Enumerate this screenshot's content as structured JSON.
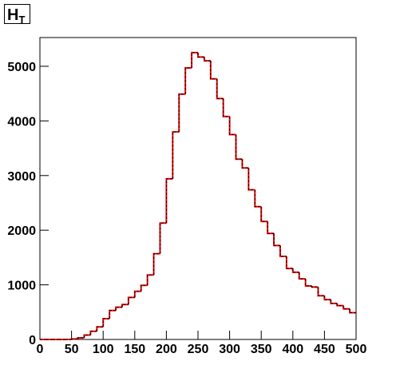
{
  "chart_data": {
    "type": "histogram",
    "title": "H",
    "title_subscript": "T",
    "bins": [
      0,
      10,
      20,
      30,
      40,
      50,
      60,
      70,
      80,
      90,
      100,
      110,
      120,
      130,
      140,
      150,
      160,
      170,
      180,
      190,
      200,
      210,
      220,
      230,
      240,
      250,
      260,
      270,
      280,
      290,
      300,
      310,
      320,
      330,
      340,
      350,
      360,
      370,
      380,
      390,
      400,
      410,
      420,
      430,
      440,
      450,
      460,
      470,
      480,
      490,
      500
    ],
    "series": [
      {
        "color": "#ff0000",
        "line_style": "solid",
        "values": [
          0,
          0,
          0,
          0,
          0,
          10,
          30,
          80,
          150,
          230,
          380,
          530,
          590,
          640,
          770,
          880,
          990,
          1180,
          1570,
          2130,
          2940,
          3800,
          4490,
          4970,
          5250,
          5170,
          5100,
          4770,
          4410,
          4080,
          3750,
          3300,
          3140,
          2740,
          2430,
          2160,
          1940,
          1720,
          1520,
          1300,
          1230,
          1110,
          980,
          960,
          800,
          730,
          660,
          620,
          560,
          490
        ]
      },
      {
        "color": "#000000",
        "line_style": "dashed",
        "values": [
          0,
          0,
          0,
          0,
          0,
          10,
          30,
          80,
          150,
          230,
          380,
          530,
          590,
          640,
          770,
          880,
          990,
          1180,
          1570,
          2130,
          2940,
          3800,
          4490,
          4970,
          5250,
          5170,
          5100,
          4770,
          4410,
          4080,
          3750,
          3300,
          3140,
          2740,
          2430,
          2160,
          1940,
          1720,
          1520,
          1300,
          1230,
          1110,
          980,
          960,
          800,
          730,
          660,
          620,
          560,
          490
        ]
      }
    ],
    "xlim": [
      0,
      500
    ],
    "xticks": [
      0,
      50,
      100,
      150,
      200,
      250,
      300,
      350,
      400,
      450,
      500
    ],
    "ylim": [
      0,
      5526
    ],
    "yticks": [
      0,
      1000,
      2000,
      3000,
      4000,
      5000
    ]
  }
}
